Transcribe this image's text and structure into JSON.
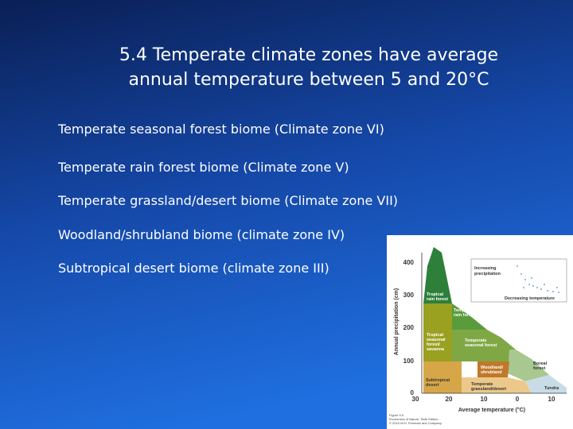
{
  "title_lines": [
    "5.4 Temperate climate zones have average",
    "annual temperature between 5 and 20°C"
  ],
  "bullets": [
    "Temperate seasonal forest biome (Climate zone VI)",
    "Temperate rain forest biome (Climate zone V)",
    "Temperate grassland/desert biome (Climate zone VII)",
    "Woodland/shrubland biome (climate zone IV)",
    "Subtropical desert biome (climate zone III)"
  ],
  "figure": {
    "y_axis_label": "Annual precipitation (cm)",
    "x_axis_label": "Average temperature (°C)",
    "yticks": [
      "400",
      "300",
      "200",
      "100",
      "0"
    ],
    "xticks": [
      "30",
      "20",
      "10",
      "0",
      "10"
    ],
    "inset": {
      "top": [
        "Increasing",
        "precipitation"
      ],
      "bottom": "Decreasing temperature"
    },
    "regions": [
      [
        "Tropical",
        "rain forest"
      ],
      [
        "Temperate",
        "rain forest"
      ],
      [
        "Tropical",
        "seasonal",
        "forest/",
        "savanna"
      ],
      [
        "Temperate",
        "seasonal forest"
      ],
      [
        "Boreal",
        "forest"
      ],
      [
        "Woodland/",
        "shrubland"
      ],
      [
        "Subtropical",
        "desert"
      ],
      [
        "Temperate",
        "grassland/desert"
      ],
      [
        "Tundra"
      ]
    ],
    "caption": [
      "Figure 5.5",
      "Economics of Nature, Sixth Edition",
      "© 2010 W.H. Freeman and Company"
    ]
  }
}
